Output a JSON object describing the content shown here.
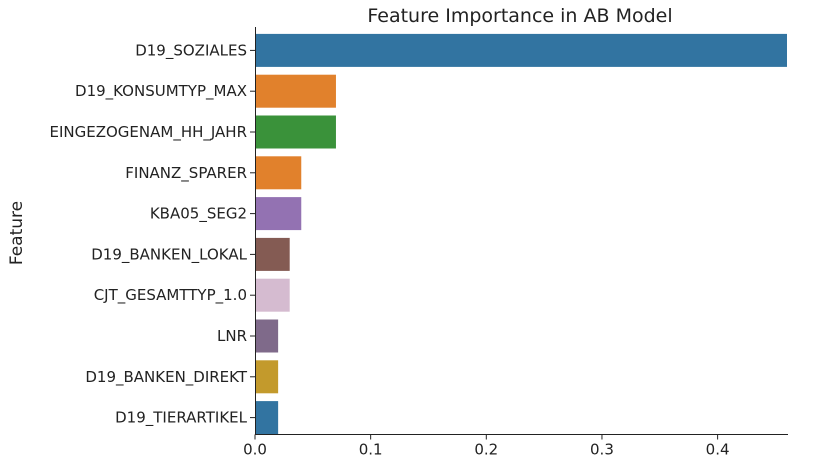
{
  "chart_data": {
    "type": "bar",
    "orientation": "horizontal",
    "title": "Feature Importance in AB Model",
    "ylabel": "Feature",
    "xlabel": "",
    "categories": [
      "D19_SOZIALES",
      "D19_KONSUMTYP_MAX",
      "EINGEZOGENAM_HH_JAHR",
      "FINANZ_SPARER",
      "KBA05_SEG2",
      "D19_BANKEN_LOKAL",
      "CJT_GESAMTTYP_1.0",
      "LNR",
      "D19_BANKEN_DIREKT",
      "D19_TIERARTIKEL"
    ],
    "values": [
      0.46,
      0.07,
      0.07,
      0.04,
      0.04,
      0.03,
      0.03,
      0.02,
      0.02,
      0.02
    ],
    "colors": [
      "#3274a1",
      "#e1812c",
      "#3a923a",
      "#e1812c",
      "#9372b2",
      "#845b53",
      "#d5bbd0",
      "#7f6a8a",
      "#c39a2c",
      "#3274a1"
    ],
    "xlim": [
      0,
      0.46
    ],
    "xticks": [
      "0.0",
      "0.1",
      "0.2",
      "0.3",
      "0.4"
    ],
    "xtick_values": [
      0,
      0.1,
      0.2,
      0.3,
      0.4
    ],
    "grid": false,
    "legend": "none"
  }
}
